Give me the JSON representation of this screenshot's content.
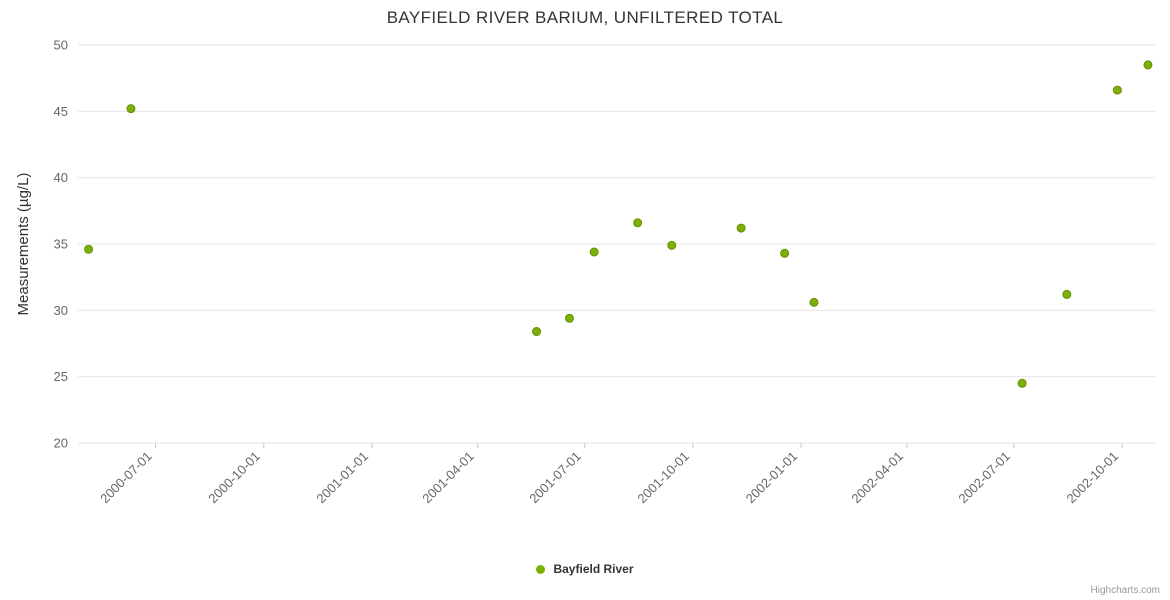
{
  "credits": "Highcharts.com",
  "chart_data": {
    "type": "scatter",
    "title": "BAYFIELD RIVER BARIUM, UNFILTERED TOTAL",
    "xlabel": "",
    "ylabel": "Measurements (µg/L)",
    "ylim": [
      20,
      50
    ],
    "y_ticks": [
      20,
      25,
      30,
      35,
      40,
      45,
      50
    ],
    "x_tick_labels": [
      "2000-07-01",
      "2000-10-01",
      "2001-01-01",
      "2001-04-01",
      "2001-07-01",
      "2001-10-01",
      "2002-01-01",
      "2002-04-01",
      "2002-07-01",
      "2002-10-01"
    ],
    "x_range": [
      "2000-04-26",
      "2002-10-29"
    ],
    "grid": true,
    "legend_position": "bottom-center",
    "colors": {
      "point": "#7db004",
      "point_border": "#648f08",
      "grid": "#e6e6e6",
      "tick": "#c8c8c8",
      "axis_labels": "#666666",
      "title": "#333333"
    },
    "series": [
      {
        "name": "Bayfield River",
        "points": [
          {
            "date": "2000-05-05",
            "value": 34.6
          },
          {
            "date": "2000-06-10",
            "value": 45.2
          },
          {
            "date": "2001-05-21",
            "value": 28.4
          },
          {
            "date": "2001-06-18",
            "value": 29.4
          },
          {
            "date": "2001-07-09",
            "value": 34.4
          },
          {
            "date": "2001-08-15",
            "value": 36.6
          },
          {
            "date": "2001-09-13",
            "value": 34.9
          },
          {
            "date": "2001-11-11",
            "value": 36.2
          },
          {
            "date": "2001-12-18",
            "value": 34.3
          },
          {
            "date": "2002-01-12",
            "value": 30.6
          },
          {
            "date": "2002-07-08",
            "value": 24.5
          },
          {
            "date": "2002-08-15",
            "value": 31.2
          },
          {
            "date": "2002-09-27",
            "value": 46.6
          },
          {
            "date": "2002-10-23",
            "value": 48.5
          }
        ]
      }
    ]
  }
}
